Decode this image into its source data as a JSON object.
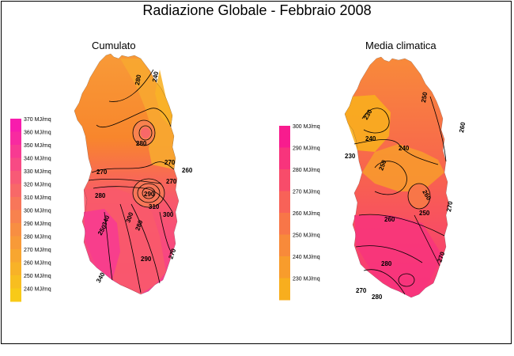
{
  "title": "Radiazione Globale - Febbraio 2008",
  "panels": [
    {
      "subtitle": "Cumulato",
      "legend": [
        "370 MJ/mq",
        "360 MJ/mq",
        "350 MJ/mq",
        "340 MJ/mq",
        "330 MJ/mq",
        "320 MJ/mq",
        "310 MJ/mq",
        "300 MJ/mq",
        "290 MJ/mq",
        "280 MJ/mq",
        "270 MJ/mq",
        "260 MJ/mq",
        "250 MJ/mq",
        "240 MJ/mq"
      ],
      "colors": [
        "#f81cad",
        "#f82aa0",
        "#f83a92",
        "#f84a84",
        "#f85a76",
        "#f86868",
        "#f8765a",
        "#f8824e",
        "#f88e42",
        "#f89a38",
        "#f8a630",
        "#f8b228",
        "#f8be20",
        "#f8ca18"
      ],
      "contour_labels": [
        "280",
        "240",
        "280",
        "270",
        "270",
        "260",
        "270",
        "280",
        "290",
        "310",
        "340",
        "300",
        "280",
        "300",
        "290",
        "270",
        "340",
        "250"
      ]
    },
    {
      "subtitle": "Media climatica",
      "legend": [
        "300 MJ/mq",
        "290 MJ/mq",
        "280 MJ/mq",
        "270 MJ/mq",
        "260 MJ/mq",
        "250 MJ/mq",
        "240 MJ/mq",
        "230 MJ/mq"
      ],
      "colors": [
        "#f81c8e",
        "#f8347c",
        "#f84c6a",
        "#f86258",
        "#f87648",
        "#f88a3a",
        "#f89c2c",
        "#f8ae1e"
      ],
      "contour_labels": [
        "230",
        "230",
        "240",
        "250",
        "240",
        "250",
        "260",
        "260",
        "270",
        "260",
        "270",
        "280",
        "270",
        "250",
        "280"
      ]
    }
  ]
}
